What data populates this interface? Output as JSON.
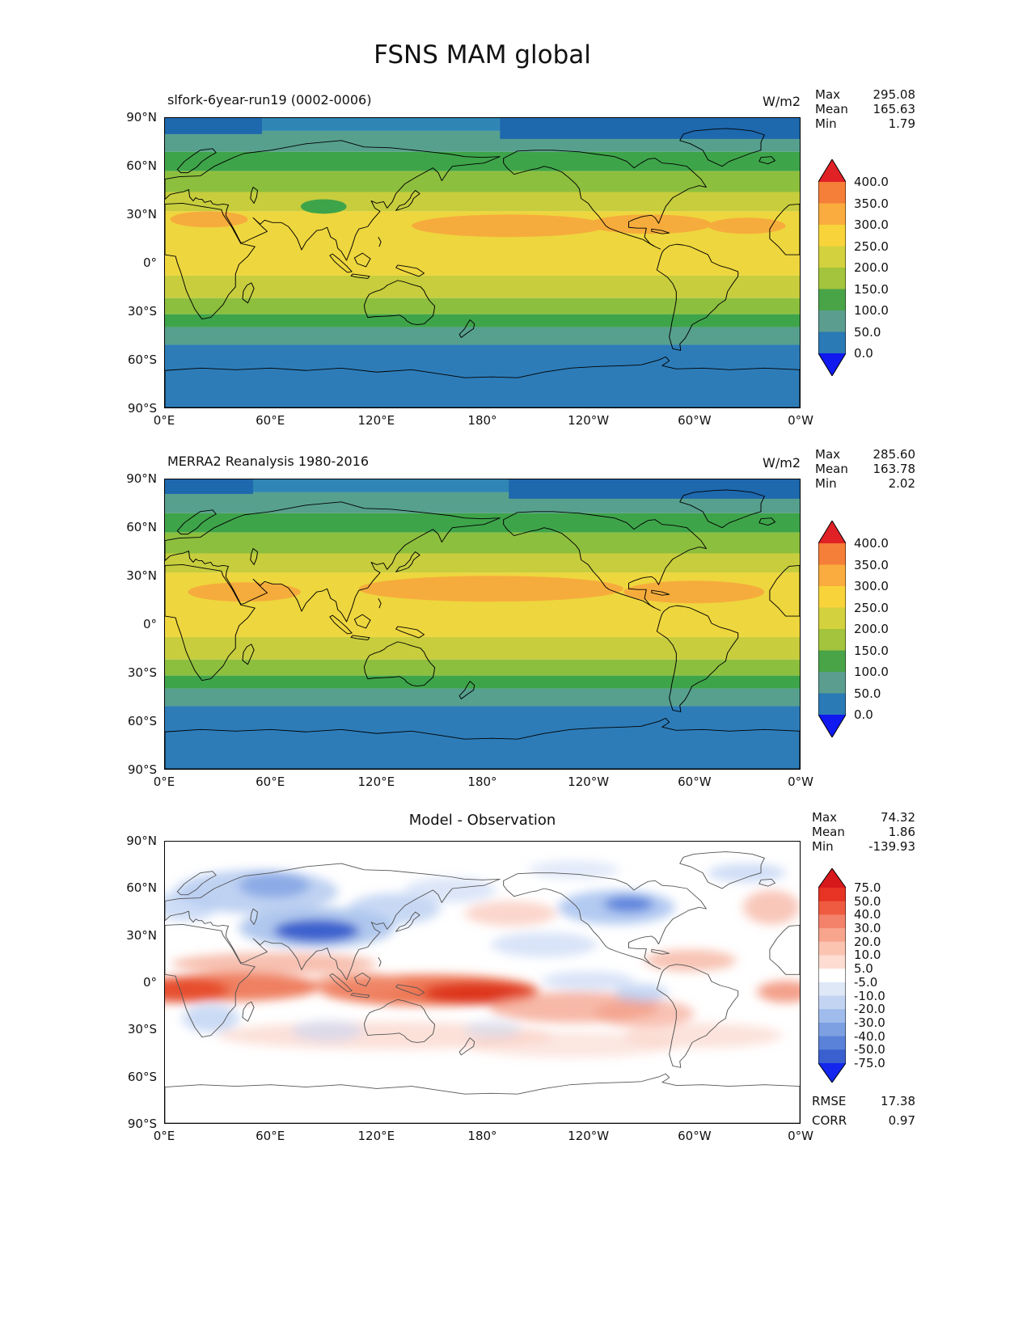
{
  "figure_title": "FSNS MAM global",
  "panel1": {
    "title": "slfork-6year-run19 (0002-0006)",
    "units": "W/m2",
    "stats": {
      "max": "295.08",
      "mean": "165.63",
      "min": "1.79"
    }
  },
  "panel2": {
    "title": "MERRA2 Reanalysis 1980-2016",
    "units": "W/m2",
    "stats": {
      "max": "285.60",
      "mean": "163.78",
      "min": "2.02"
    }
  },
  "panel3": {
    "title": "Model - Observation",
    "stats": {
      "max": "74.32",
      "mean": "1.86",
      "min": "-139.93"
    },
    "rmse": "17.38",
    "corr": "0.97"
  },
  "stats_labels": {
    "max": "Max",
    "mean": "Mean",
    "min": "Min",
    "rmse": "RMSE",
    "corr": "CORR"
  },
  "axes": {
    "lat_ticks": [
      "90°N",
      "60°N",
      "30°N",
      "0°",
      "30°S",
      "60°S",
      "90°S"
    ],
    "lon_ticks": [
      "0°E",
      "60°E",
      "120°E",
      "180°",
      "120°W",
      "60°W",
      "0°W"
    ]
  },
  "colorbar_abs": {
    "labels": [
      "400.0",
      "350.0",
      "300.0",
      "250.0",
      "200.0",
      "150.0",
      "100.0",
      "50.0",
      "0.0"
    ],
    "segment_colors": [
      "#f57e38",
      "#fbac3e",
      "#f8d43a",
      "#d3d13e",
      "#a3c43c",
      "#49a447",
      "#5b9e90",
      "#2a7ab5"
    ],
    "over_color": "#e02126",
    "under_color": "#1019f0"
  },
  "colorbar_diff": {
    "labels": [
      "75.0",
      "50.0",
      "40.0",
      "30.0",
      "20.0",
      "10.0",
      "5.0",
      "-5.0",
      "-10.0",
      "-20.0",
      "-30.0",
      "-40.0",
      "-50.0",
      "-75.0"
    ],
    "segment_colors": [
      "#e63323",
      "#ef5b40",
      "#f4826a",
      "#f8a58d",
      "#fbc4b1",
      "#fddcd1",
      "#ffffff",
      "#dfe8f7",
      "#c3d4f2",
      "#a0bcec",
      "#7da0e2",
      "#5a82d8",
      "#3a60cf"
    ],
    "over_color": "#d7191c",
    "under_color": "#1226ee"
  },
  "chart_data": [
    {
      "type": "heatmap",
      "subtype": "global-contour-map",
      "title": "slfork-6year-run19 (0002-0006)",
      "variable": "FSNS",
      "season": "MAM",
      "units": "W/m2",
      "stats": {
        "max": 295.08,
        "mean": 165.63,
        "min": 1.79
      },
      "contour_levels": [
        0,
        50,
        100,
        150,
        200,
        250,
        300,
        350,
        400
      ],
      "lat_ticks_deg": [
        90,
        60,
        30,
        0,
        -30,
        -60,
        -90
      ],
      "lon_ticks_deg_east": [
        0,
        60,
        120,
        180,
        240,
        300,
        360
      ],
      "approx_zonal_mean": {
        "lat": [
          85,
          65,
          45,
          25,
          5,
          -15,
          -35,
          -55,
          -75
        ],
        "value": [
          55,
          120,
          185,
          250,
          265,
          230,
          170,
          95,
          65
        ]
      },
      "legend_position": "right",
      "grid": false
    },
    {
      "type": "heatmap",
      "subtype": "global-contour-map",
      "title": "MERRA2 Reanalysis 1980-2016",
      "variable": "FSNS",
      "season": "MAM",
      "units": "W/m2",
      "stats": {
        "max": 285.6,
        "mean": 163.78,
        "min": 2.02
      },
      "contour_levels": [
        0,
        50,
        100,
        150,
        200,
        250,
        300,
        350,
        400
      ],
      "lat_ticks_deg": [
        90,
        60,
        30,
        0,
        -30,
        -60,
        -90
      ],
      "lon_ticks_deg_east": [
        0,
        60,
        120,
        180,
        240,
        300,
        360
      ],
      "approx_zonal_mean": {
        "lat": [
          85,
          65,
          45,
          25,
          5,
          -15,
          -35,
          -55,
          -75
        ],
        "value": [
          55,
          115,
          180,
          250,
          260,
          225,
          165,
          95,
          65
        ]
      },
      "legend_position": "right",
      "grid": false
    },
    {
      "type": "heatmap",
      "subtype": "difference-map",
      "title": "Model - Observation",
      "units": "W/m2",
      "stats": {
        "max": 74.32,
        "mean": 1.86,
        "min": -139.93
      },
      "rmse": 17.38,
      "corr": 0.97,
      "contour_levels": [
        -75,
        -50,
        -40,
        -30,
        -20,
        -10,
        -5,
        5,
        10,
        20,
        30,
        40,
        50,
        75
      ],
      "notable_features": [
        "positive bias band along the tropics, strongest over the Maritime Continent and Indian Ocean",
        "negative bias over the Tibetan Plateau, Europe/Russia, and eastern North America mid-latitudes"
      ],
      "legend_position": "right",
      "grid": false
    }
  ]
}
